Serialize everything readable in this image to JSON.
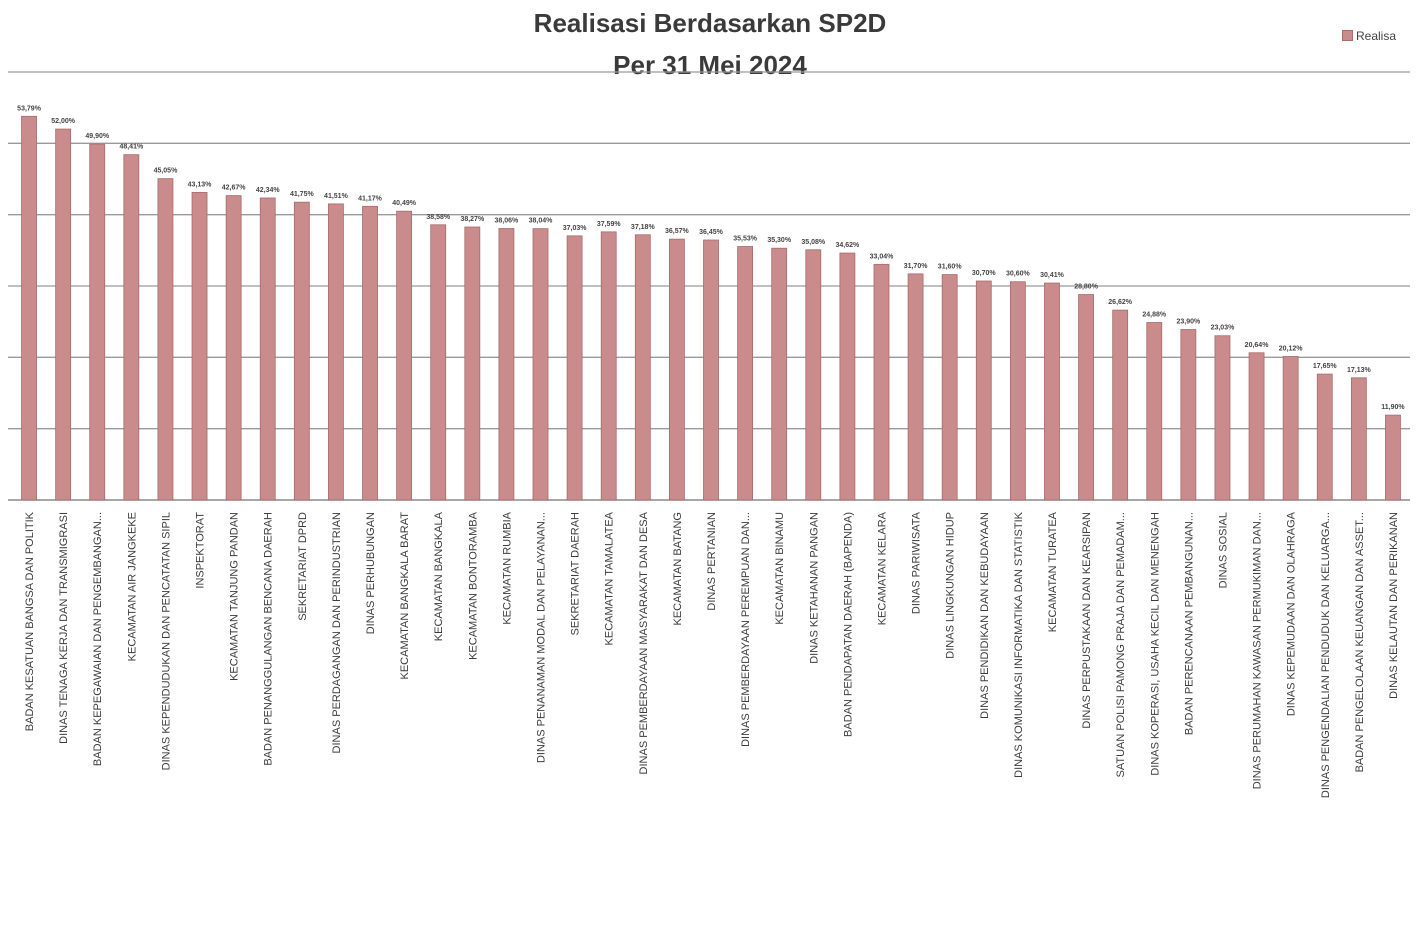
{
  "chart_data": {
    "type": "bar",
    "title": "Realisasi Berdasarkan SP2D",
    "subtitle": "Per 31 Mei 2024",
    "legend": "Realisa",
    "legend_position": "top-right",
    "grid": true,
    "bar_color": "#c98b8b",
    "ylim": [
      0,
      60
    ],
    "categories": [
      "BADAN KESATUAN BANGSA DAN POLITIK",
      "DINAS TENAGA KERJA DAN TRANSMIGRASI",
      "BADAN KEPEGAWAIAN DAN PENGEMBANGAN...",
      "KECAMATAN AIR JANGKEKE",
      "DINAS KEPENDUDUKAN DAN PENCATATAN SIPIL",
      "INSPEKTORAT",
      "KECAMATAN TANJUNG PANDAN",
      "BADAN PENANGGULANGAN BENCANA DAERAH",
      "SEKRETARIAT DPRD",
      "DINAS PERDAGANGAN DAN PERINDUSTRIAN",
      "DINAS PERHUBUNGAN",
      "KECAMATAN BANGKALA BARAT",
      "KECAMATAN BANGKALA",
      "KECAMATAN BONTORAMBA",
      "KECAMATAN RUMBIA",
      "DINAS PENANAMAN MODAL DAN PELAYANAN...",
      "SEKRETARIAT DAERAH",
      "KECAMATAN TAMALATEA",
      "DINAS PEMBERDAYAAN MASYARAKAT DAN DESA",
      "KECAMATAN BATANG",
      "DINAS PERTANIAN",
      "DINAS PEMBERDAYAAN PEREMPUAN DAN...",
      "KECAMATAN BINAMU",
      "DINAS KETAHANAN PANGAN",
      "BADAN PENDAPATAN DAERAH (BAPENDA)",
      "KECAMATAN KELARA",
      "DINAS PARIWISATA",
      "DINAS LINGKUNGAN HIDUP",
      "DINAS PENDIDIKAN DAN KEBUDAYAAN",
      "DINAS KOMUNIKASI INFORMATIKA DAN STATISTIK",
      "KECAMATAN TURATEA",
      "DINAS PERPUSTAKAAN DAN KEARSIPAN",
      "SATUAN POLISI PAMONG PRAJA DAN PEMADAM...",
      "DINAS KOPERASI, USAHA KECIL DAN MENENGAH",
      "BADAN PERENCANAAN PEMBANGUNAN...",
      "DINAS SOSIAL",
      "DINAS PERUMAHAN KAWASAN PERMUKIMAN DAN...",
      "DINAS KEPEMUDAAN DAN OLAHRAGA",
      "DINAS PENGENDALIAN PENDUDUK DAN KELUARGA...",
      "BADAN PENGELOLAAN KEUANGAN DAN ASSET...",
      "DINAS KELAUTAN DAN PERIKANAN"
    ],
    "values": [
      53.79,
      52.0,
      49.9,
      48.41,
      45.05,
      43.13,
      42.67,
      42.34,
      41.75,
      41.51,
      41.17,
      40.49,
      38.58,
      38.27,
      38.06,
      38.04,
      37.03,
      37.59,
      37.18,
      36.57,
      36.45,
      35.53,
      35.3,
      35.08,
      34.62,
      33.04,
      31.7,
      31.6,
      30.7,
      30.6,
      30.41,
      28.8,
      26.62,
      24.88,
      23.9,
      23.03,
      20.64,
      20.12,
      17.65,
      17.13,
      11.9
    ],
    "value_labels": [
      "53,79%",
      "52,00%",
      "49,90%",
      "48,41%",
      "45,05%",
      "43,13%",
      "42,67%",
      "42,34%",
      "41,75%",
      "41,51%",
      "41,17%",
      "40,49%",
      "38,58%",
      "38,27%",
      "38,06%",
      "38,04%",
      "37,03%",
      "37,59%",
      "37,18%",
      "36,57%",
      "36,45%",
      "35,53%",
      "35,30%",
      "35,08%",
      "34,62%",
      "33,04%",
      "31,70%",
      "31,60%",
      "30,70%",
      "30,60%",
      "30,41%",
      "28,80%",
      "26,62%",
      "24,88%",
      "23,90%",
      "23,03%",
      "20,64%",
      "20,12%",
      "17,65%",
      "17,13%",
      "11,90%"
    ]
  }
}
